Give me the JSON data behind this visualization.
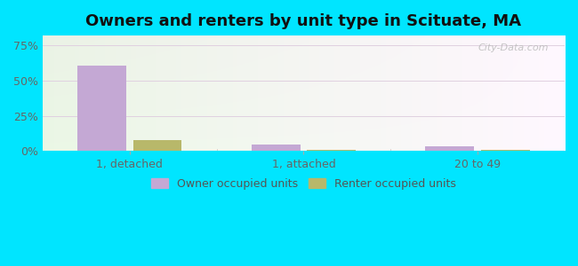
{
  "title": "Owners and renters by unit type in Scituate, MA",
  "categories": [
    "1, detached",
    "1, attached",
    "20 to 49"
  ],
  "owner_values": [
    0.605,
    0.045,
    0.033
  ],
  "renter_values": [
    0.075,
    0.008,
    0.008
  ],
  "owner_color": "#c4a8d4",
  "renter_color": "#b8b86a",
  "yticks": [
    0.0,
    0.25,
    0.5,
    0.75
  ],
  "ytick_labels": [
    "0%",
    "25%",
    "50%",
    "75%"
  ],
  "ylim": [
    0,
    0.82
  ],
  "bg_outer": "#00e5ff",
  "watermark": "City-Data.com",
  "legend_owner": "Owner occupied units",
  "legend_renter": "Renter occupied units",
  "bar_width": 0.28,
  "title_fontsize": 13,
  "tick_fontsize": 9,
  "legend_fontsize": 9
}
